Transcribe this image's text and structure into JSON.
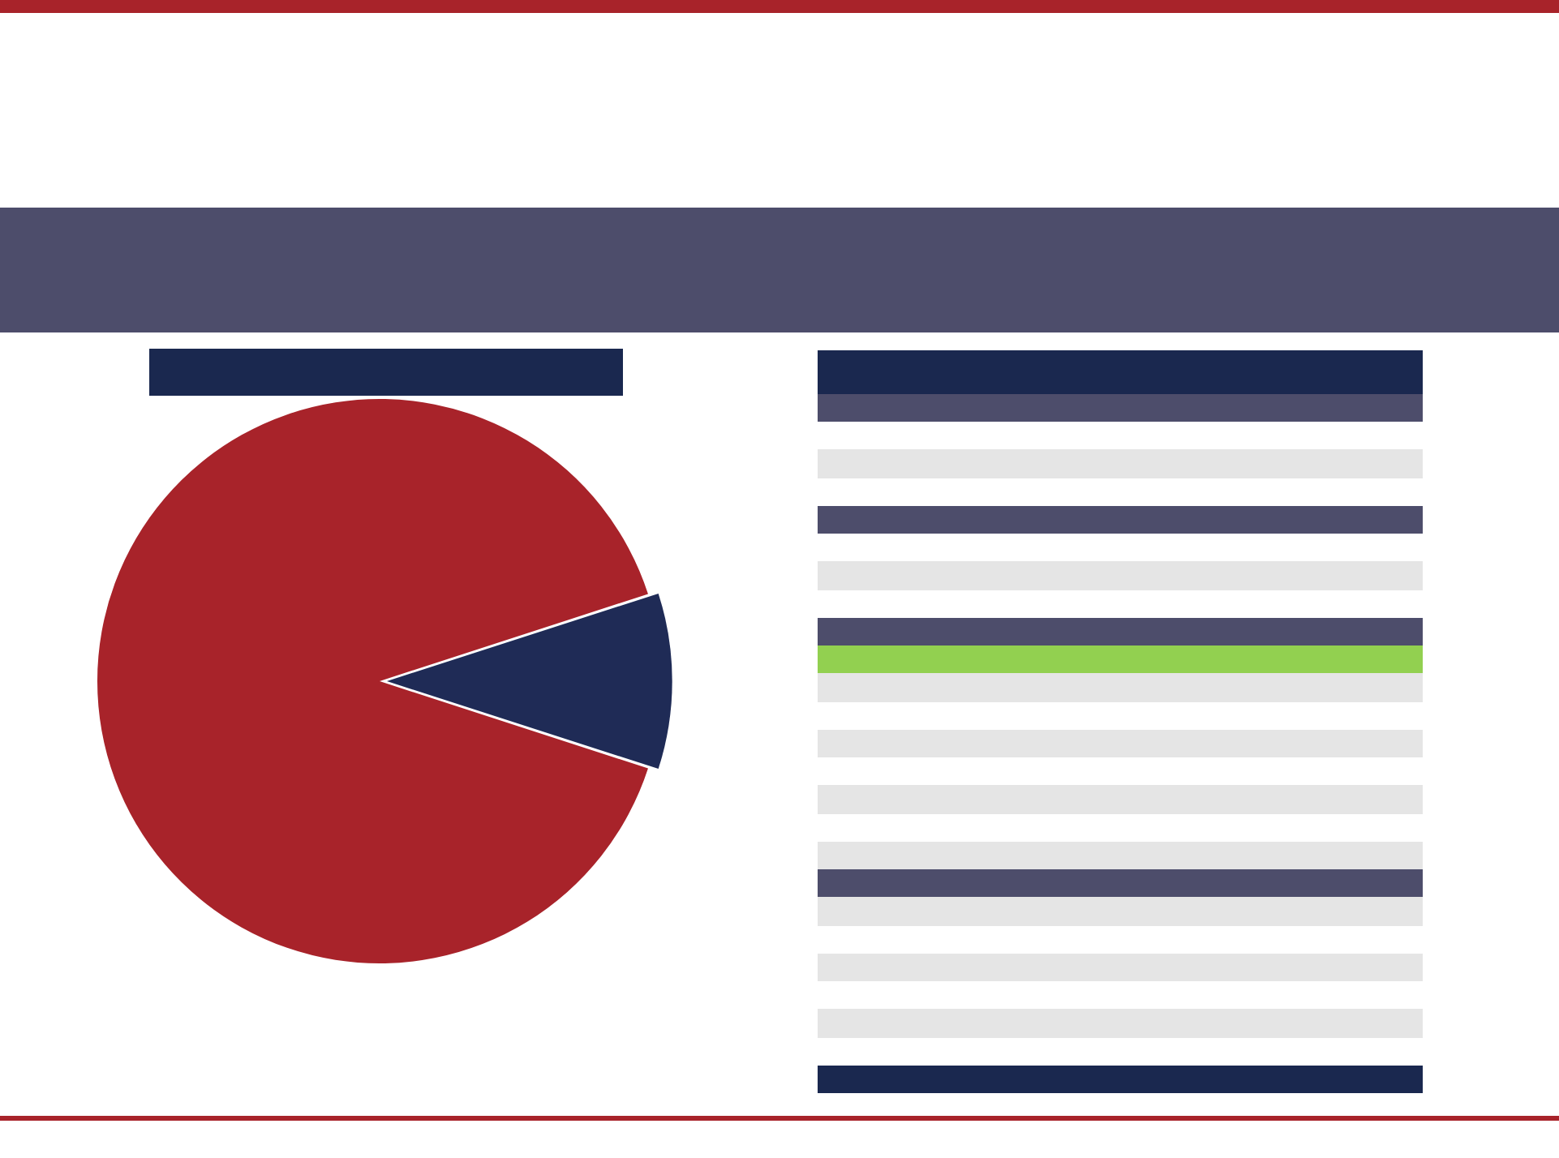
{
  "chart_data": {
    "type": "pie",
    "categories": [
      null,
      null
    ],
    "values": [
      10,
      90
    ],
    "colors": [
      "#1f2b56",
      "#a8232a"
    ]
  }
}
